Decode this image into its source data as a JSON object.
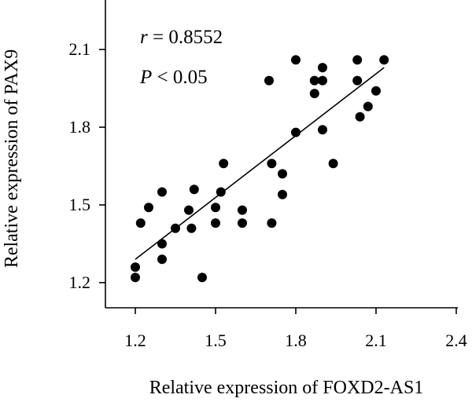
{
  "chart_data": {
    "type": "scatter",
    "title": "",
    "xlabel": "Relative expression of FOXD2-AS1",
    "ylabel": "Relative expression of PAX9",
    "xlim": [
      1.1,
      2.4
    ],
    "ylim": [
      1.1,
      2.25
    ],
    "xticks": [
      "1.2",
      "1.5",
      "1.8",
      "2.1",
      "2.4"
    ],
    "yticks": [
      "1.2",
      "1.5",
      "1.8",
      "2.1"
    ],
    "grid": false,
    "legend": "none",
    "annotations": {
      "r_symbol": "r",
      "r_value": " = 0.8552",
      "p_symbol": "P",
      "p_value": " < 0.05"
    },
    "points": [
      {
        "x": 1.2,
        "y": 1.26
      },
      {
        "x": 1.2,
        "y": 1.22
      },
      {
        "x": 1.22,
        "y": 1.43
      },
      {
        "x": 1.25,
        "y": 1.49
      },
      {
        "x": 1.3,
        "y": 1.55
      },
      {
        "x": 1.3,
        "y": 1.35
      },
      {
        "x": 1.3,
        "y": 1.29
      },
      {
        "x": 1.35,
        "y": 1.41
      },
      {
        "x": 1.4,
        "y": 1.48
      },
      {
        "x": 1.41,
        "y": 1.41
      },
      {
        "x": 1.42,
        "y": 1.56
      },
      {
        "x": 1.45,
        "y": 1.22
      },
      {
        "x": 1.5,
        "y": 1.49
      },
      {
        "x": 1.5,
        "y": 1.43
      },
      {
        "x": 1.52,
        "y": 1.55
      },
      {
        "x": 1.53,
        "y": 1.66
      },
      {
        "x": 1.6,
        "y": 1.48
      },
      {
        "x": 1.6,
        "y": 1.43
      },
      {
        "x": 1.7,
        "y": 1.98
      },
      {
        "x": 1.71,
        "y": 1.66
      },
      {
        "x": 1.71,
        "y": 1.43
      },
      {
        "x": 1.75,
        "y": 1.62
      },
      {
        "x": 1.75,
        "y": 1.54
      },
      {
        "x": 1.8,
        "y": 2.06
      },
      {
        "x": 1.8,
        "y": 1.78
      },
      {
        "x": 1.87,
        "y": 1.98
      },
      {
        "x": 1.87,
        "y": 1.93
      },
      {
        "x": 1.9,
        "y": 2.03
      },
      {
        "x": 1.9,
        "y": 1.98
      },
      {
        "x": 1.9,
        "y": 1.79
      },
      {
        "x": 1.94,
        "y": 1.66
      },
      {
        "x": 2.03,
        "y": 2.06
      },
      {
        "x": 2.03,
        "y": 1.98
      },
      {
        "x": 2.04,
        "y": 1.84
      },
      {
        "x": 2.07,
        "y": 1.88
      },
      {
        "x": 2.1,
        "y": 1.94
      },
      {
        "x": 2.13,
        "y": 2.06
      }
    ],
    "fit_line": {
      "x1": 1.2,
      "y1": 1.29,
      "x2": 2.13,
      "y2": 2.03
    }
  }
}
